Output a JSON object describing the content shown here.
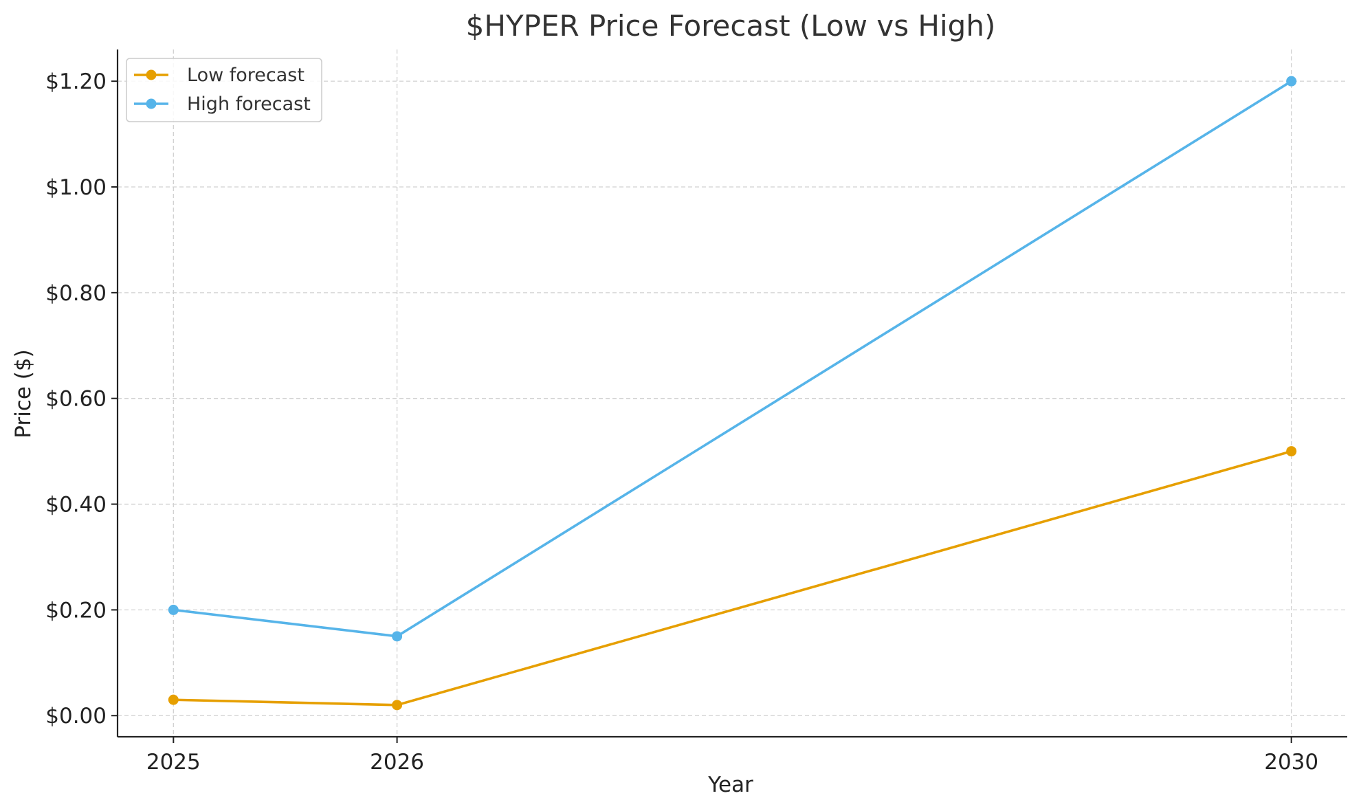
{
  "chart_data": {
    "type": "line",
    "title": "$HYPER Price Forecast (Low vs High)",
    "xlabel": "Year",
    "ylabel": "Price ($)",
    "x": [
      2025,
      2026,
      2030
    ],
    "x_tick_labels": [
      "2025",
      "2026",
      "2030"
    ],
    "xlim": [
      2024.75,
      2030.25
    ],
    "ylim": [
      -0.04,
      1.26
    ],
    "y_ticks": [
      0.0,
      0.2,
      0.4,
      0.6,
      0.8,
      1.0,
      1.2
    ],
    "y_tick_labels": [
      "$0.00",
      "$0.20",
      "$0.40",
      "$0.60",
      "$0.80",
      "$1.00",
      "$1.20"
    ],
    "grid": true,
    "legend_position": "top-left",
    "series": [
      {
        "name": "Low forecast",
        "color": "#E69F00",
        "values": [
          0.03,
          0.02,
          0.5
        ]
      },
      {
        "name": "High forecast",
        "color": "#56B4E9",
        "values": [
          0.2,
          0.15,
          1.2
        ]
      }
    ]
  }
}
